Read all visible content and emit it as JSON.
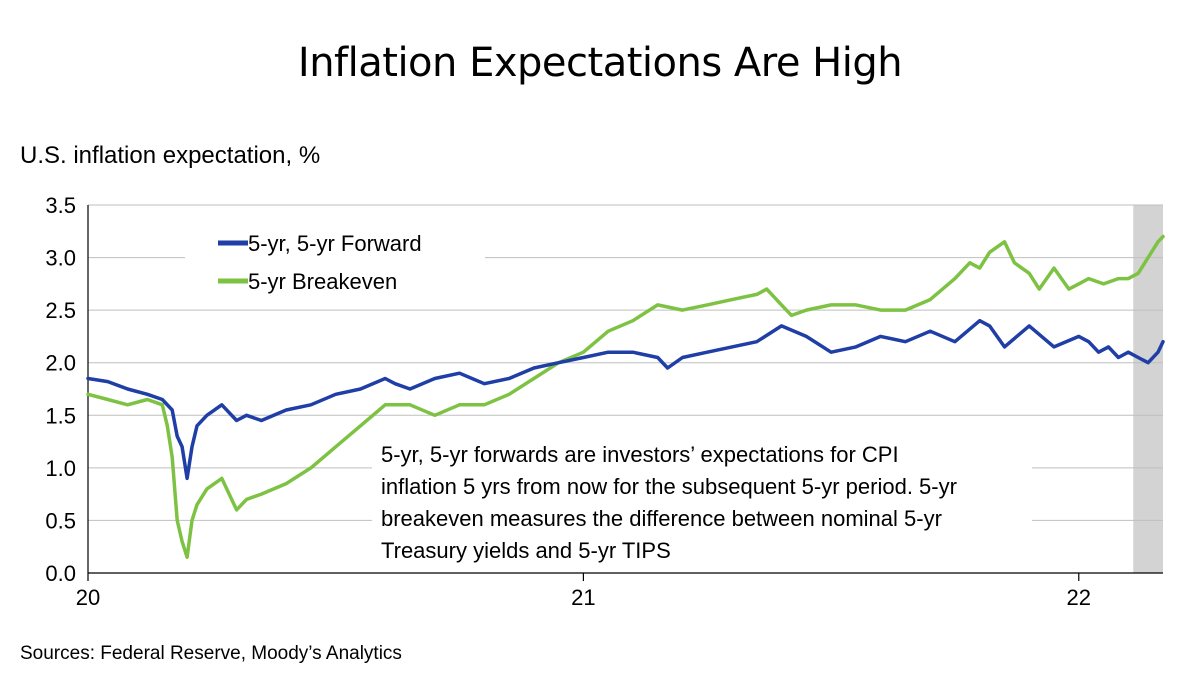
{
  "page": {
    "title": "Inflation Expectations Are High",
    "source": "Sources: Federal Reserve, Moody’s Analytics"
  },
  "chart_data": {
    "type": "line",
    "title": "Inflation Expectations Are High",
    "ylabel": "U.S. inflation expectation, %",
    "xlabel": "",
    "ylim": [
      0,
      3.5
    ],
    "xlim": [
      2020.0,
      2022.17
    ],
    "yticks": [
      0.0,
      0.5,
      1.0,
      1.5,
      2.0,
      2.5,
      3.0,
      3.5
    ],
    "ytick_labels": [
      "0.0",
      "0.5",
      "1.0",
      "1.5",
      "2.0",
      "2.5",
      "3.0",
      "3.5"
    ],
    "xticks": [
      2020,
      2021,
      2022
    ],
    "xtick_labels": [
      "20",
      "21",
      "22"
    ],
    "grid": "horizontal",
    "legend_position": "top-left",
    "shaded_region": {
      "x_start": 2022.11,
      "x_end": 2022.17,
      "color": "#d3d3d3"
    },
    "annotation": "5-yr, 5-yr forwards are investors’ expectations for CPI inflation 5 yrs from now for the subsequent 5-yr period. 5-yr breakeven measures the difference between nominal 5-yr Treasury yields and 5-yr TIPS",
    "series": [
      {
        "name": "5-yr, 5-yr Forward",
        "color": "#1f3ea6",
        "x": [
          2020.0,
          2020.04,
          2020.08,
          2020.12,
          2020.15,
          2020.17,
          2020.18,
          2020.19,
          2020.2,
          2020.21,
          2020.22,
          2020.24,
          2020.27,
          2020.3,
          2020.32,
          2020.35,
          2020.4,
          2020.45,
          2020.5,
          2020.55,
          2020.6,
          2020.62,
          2020.65,
          2020.7,
          2020.75,
          2020.8,
          2020.85,
          2020.9,
          2020.95,
          2021.0,
          2021.05,
          2021.1,
          2021.15,
          2021.17,
          2021.2,
          2021.25,
          2021.3,
          2021.35,
          2021.4,
          2021.45,
          2021.5,
          2021.55,
          2021.6,
          2021.65,
          2021.7,
          2021.75,
          2021.8,
          2021.82,
          2021.85,
          2021.9,
          2021.95,
          2022.0,
          2022.02,
          2022.04,
          2022.06,
          2022.08,
          2022.1,
          2022.12,
          2022.14,
          2022.16,
          2022.17
        ],
        "values": [
          1.85,
          1.82,
          1.75,
          1.7,
          1.65,
          1.55,
          1.3,
          1.2,
          0.9,
          1.2,
          1.4,
          1.5,
          1.6,
          1.45,
          1.5,
          1.45,
          1.55,
          1.6,
          1.7,
          1.75,
          1.85,
          1.8,
          1.75,
          1.85,
          1.9,
          1.8,
          1.85,
          1.95,
          2.0,
          2.05,
          2.1,
          2.1,
          2.05,
          1.95,
          2.05,
          2.1,
          2.15,
          2.2,
          2.35,
          2.25,
          2.1,
          2.15,
          2.25,
          2.2,
          2.3,
          2.2,
          2.4,
          2.35,
          2.15,
          2.35,
          2.15,
          2.25,
          2.2,
          2.1,
          2.15,
          2.05,
          2.1,
          2.05,
          2.0,
          2.1,
          2.2
        ]
      },
      {
        "name": "5-yr Breakeven",
        "color": "#7dc242",
        "x": [
          2020.0,
          2020.04,
          2020.08,
          2020.12,
          2020.15,
          2020.16,
          2020.17,
          2020.18,
          2020.19,
          2020.2,
          2020.21,
          2020.22,
          2020.24,
          2020.27,
          2020.3,
          2020.32,
          2020.35,
          2020.4,
          2020.45,
          2020.5,
          2020.55,
          2020.6,
          2020.65,
          2020.7,
          2020.75,
          2020.8,
          2020.85,
          2020.9,
          2020.95,
          2021.0,
          2021.05,
          2021.1,
          2021.15,
          2021.2,
          2021.25,
          2021.3,
          2021.35,
          2021.37,
          2021.4,
          2021.42,
          2021.45,
          2021.5,
          2021.55,
          2021.6,
          2021.65,
          2021.7,
          2021.75,
          2021.78,
          2021.8,
          2021.82,
          2021.85,
          2021.87,
          2021.9,
          2021.92,
          2021.95,
          2021.98,
          2022.0,
          2022.02,
          2022.05,
          2022.08,
          2022.1,
          2022.12,
          2022.14,
          2022.16,
          2022.17
        ],
        "values": [
          1.7,
          1.65,
          1.6,
          1.65,
          1.6,
          1.4,
          1.1,
          0.5,
          0.3,
          0.15,
          0.5,
          0.65,
          0.8,
          0.9,
          0.6,
          0.7,
          0.75,
          0.85,
          1.0,
          1.2,
          1.4,
          1.6,
          1.6,
          1.5,
          1.6,
          1.6,
          1.7,
          1.85,
          2.0,
          2.1,
          2.3,
          2.4,
          2.55,
          2.5,
          2.55,
          2.6,
          2.65,
          2.7,
          2.55,
          2.45,
          2.5,
          2.55,
          2.55,
          2.5,
          2.5,
          2.6,
          2.8,
          2.95,
          2.9,
          3.05,
          3.15,
          2.95,
          2.85,
          2.7,
          2.9,
          2.7,
          2.75,
          2.8,
          2.75,
          2.8,
          2.8,
          2.85,
          3.0,
          3.15,
          3.2
        ]
      }
    ]
  }
}
